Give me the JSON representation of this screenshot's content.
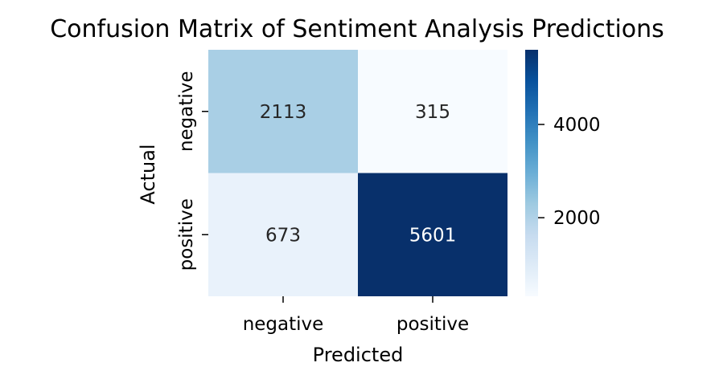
{
  "chart_data": {
    "type": "heatmap",
    "title": "Confusion Matrix of Sentiment Analysis Predictions",
    "xlabel": "Predicted",
    "ylabel": "Actual",
    "x_categories": [
      "negative",
      "positive"
    ],
    "y_categories": [
      "negative",
      "positive"
    ],
    "values": [
      [
        2113,
        315
      ],
      [
        673,
        5601
      ]
    ],
    "colormap": "Blues",
    "color_range": [
      315,
      5601
    ],
    "colorbar_ticks": [
      2000,
      4000
    ],
    "colorbar_tick_labels": [
      "2000",
      "4000"
    ],
    "light_text_color": "#ffffff",
    "dark_text_color": "#262626",
    "colormap_stops": [
      "#f7fbff",
      "#deebf7",
      "#c6dbef",
      "#9ecae1",
      "#6baed6",
      "#4292c6",
      "#2171b5",
      "#08519c",
      "#08306b"
    ]
  }
}
